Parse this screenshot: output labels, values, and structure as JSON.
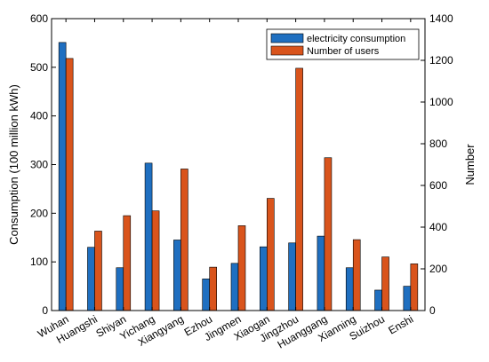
{
  "chart_data": {
    "type": "bar",
    "categories": [
      "Wuhan",
      "Huangshi",
      "Shiyan",
      "Yichang",
      "Xiangyang",
      "Ezhou",
      "Jingmen",
      "Xiaogan",
      "Jingzhou",
      "Huanggang",
      "Xianning",
      "Suizhou",
      "Enshi"
    ],
    "series": [
      {
        "name": "electricity consumption",
        "axis": "left",
        "color": "#1f6fc0",
        "values": [
          551,
          130,
          88,
          303,
          145,
          65,
          97,
          131,
          139,
          153,
          88,
          42,
          50
        ]
      },
      {
        "name": "Number of users",
        "axis": "right",
        "color": "#d9541c",
        "values": [
          1209,
          381,
          455,
          478,
          679,
          208,
          407,
          538,
          1162,
          733,
          340,
          257,
          224
        ]
      }
    ],
    "ylabel": "Consumption (100 million kWh)",
    "ylabel_right": "Number",
    "ylim": [
      0,
      600
    ],
    "ylim_right": [
      0,
      1400
    ],
    "yticks": [
      0,
      100,
      200,
      300,
      400,
      500,
      600
    ],
    "yticks_right": [
      0,
      200,
      400,
      600,
      800,
      1000,
      1200,
      1400
    ],
    "grid": false,
    "legend_position": "top-right"
  }
}
